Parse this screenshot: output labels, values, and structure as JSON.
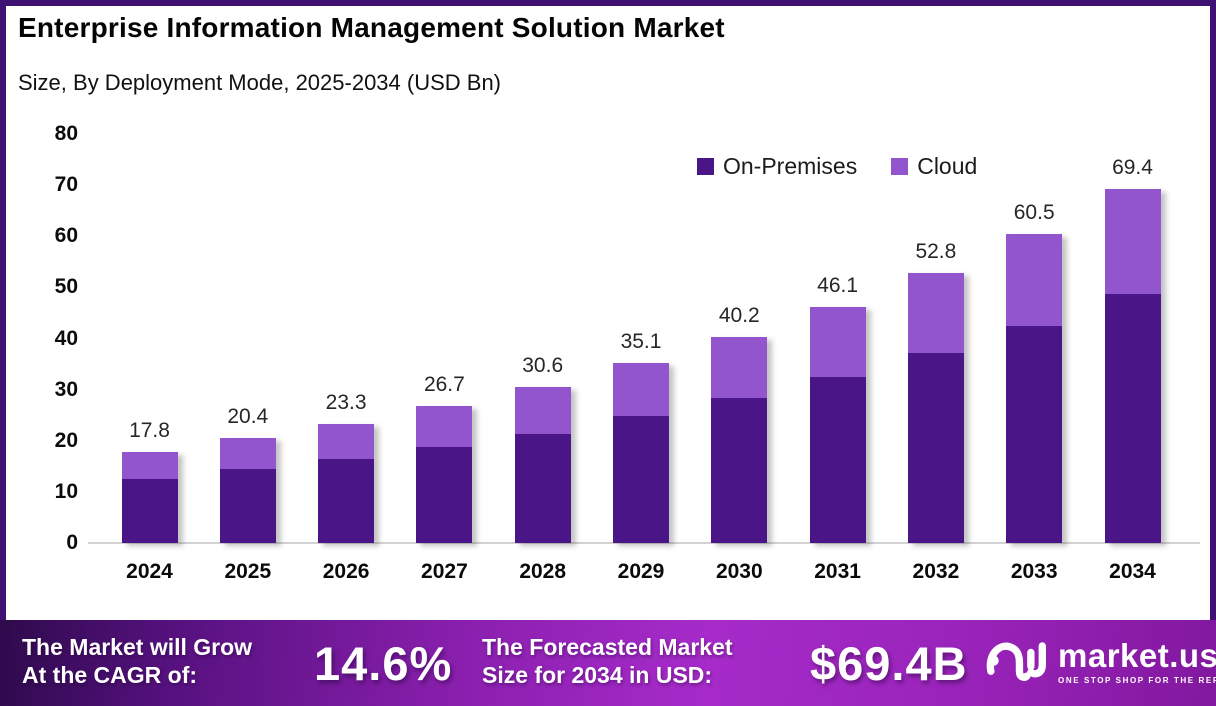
{
  "header": {
    "title": "Enterprise Information Management Solution Market",
    "subtitle": "Size, By Deployment Mode, 2025-2034 (USD Bn)"
  },
  "legend": [
    {
      "label": "On-Premises",
      "color": "#4a1587"
    },
    {
      "label": "Cloud",
      "color": "#9255ce"
    }
  ],
  "colors": {
    "on_premises": "#4a1587",
    "cloud": "#9255ce",
    "frame_border": "#3f1173",
    "banner_gradient_start": "#2e0a4c",
    "banner_gradient_mid": "#a62bc9",
    "banner_gradient_end": "#82189f"
  },
  "chart_data": {
    "type": "bar",
    "stacked": true,
    "title": "Enterprise Information Management Solution Market",
    "subtitle": "Size, By Deployment Mode, 2025-2034 (USD Bn)",
    "categories": [
      "2024",
      "2025",
      "2026",
      "2027",
      "2028",
      "2029",
      "2030",
      "2031",
      "2032",
      "2033",
      "2034"
    ],
    "series": [
      {
        "name": "On-Premises",
        "color": "#4a1587",
        "values": [
          12.5,
          14.4,
          16.4,
          18.7,
          21.4,
          24.8,
          28.3,
          32.5,
          37.1,
          42.5,
          48.8
        ]
      },
      {
        "name": "Cloud",
        "color": "#9255ce",
        "values": [
          5.3,
          6.0,
          6.9,
          8.0,
          9.2,
          10.3,
          11.9,
          13.6,
          15.7,
          18.0,
          20.6
        ]
      }
    ],
    "totals": [
      17.8,
      20.4,
      23.3,
      26.7,
      30.6,
      35.1,
      40.2,
      46.1,
      52.8,
      60.5,
      69.4
    ],
    "xlabel": "",
    "ylabel": "",
    "ylim": [
      0,
      80
    ],
    "yticks": [
      0,
      10,
      20,
      30,
      40,
      50,
      60,
      70,
      80
    ],
    "grid": false,
    "legend_position": "top-right",
    "value_labels": "totals above bars"
  },
  "footer": {
    "cagr_label_line1": "The Market will Grow",
    "cagr_label_line2": "At the CAGR of:",
    "cagr_value": "14.6%",
    "forecast_label_line1": "The Forecasted Market",
    "forecast_label_line2": "Size for 2034 in USD:",
    "forecast_value": "$69.4B",
    "brand": {
      "name": "market.us",
      "tagline": "ONE STOP SHOP FOR THE REPORTS"
    }
  }
}
